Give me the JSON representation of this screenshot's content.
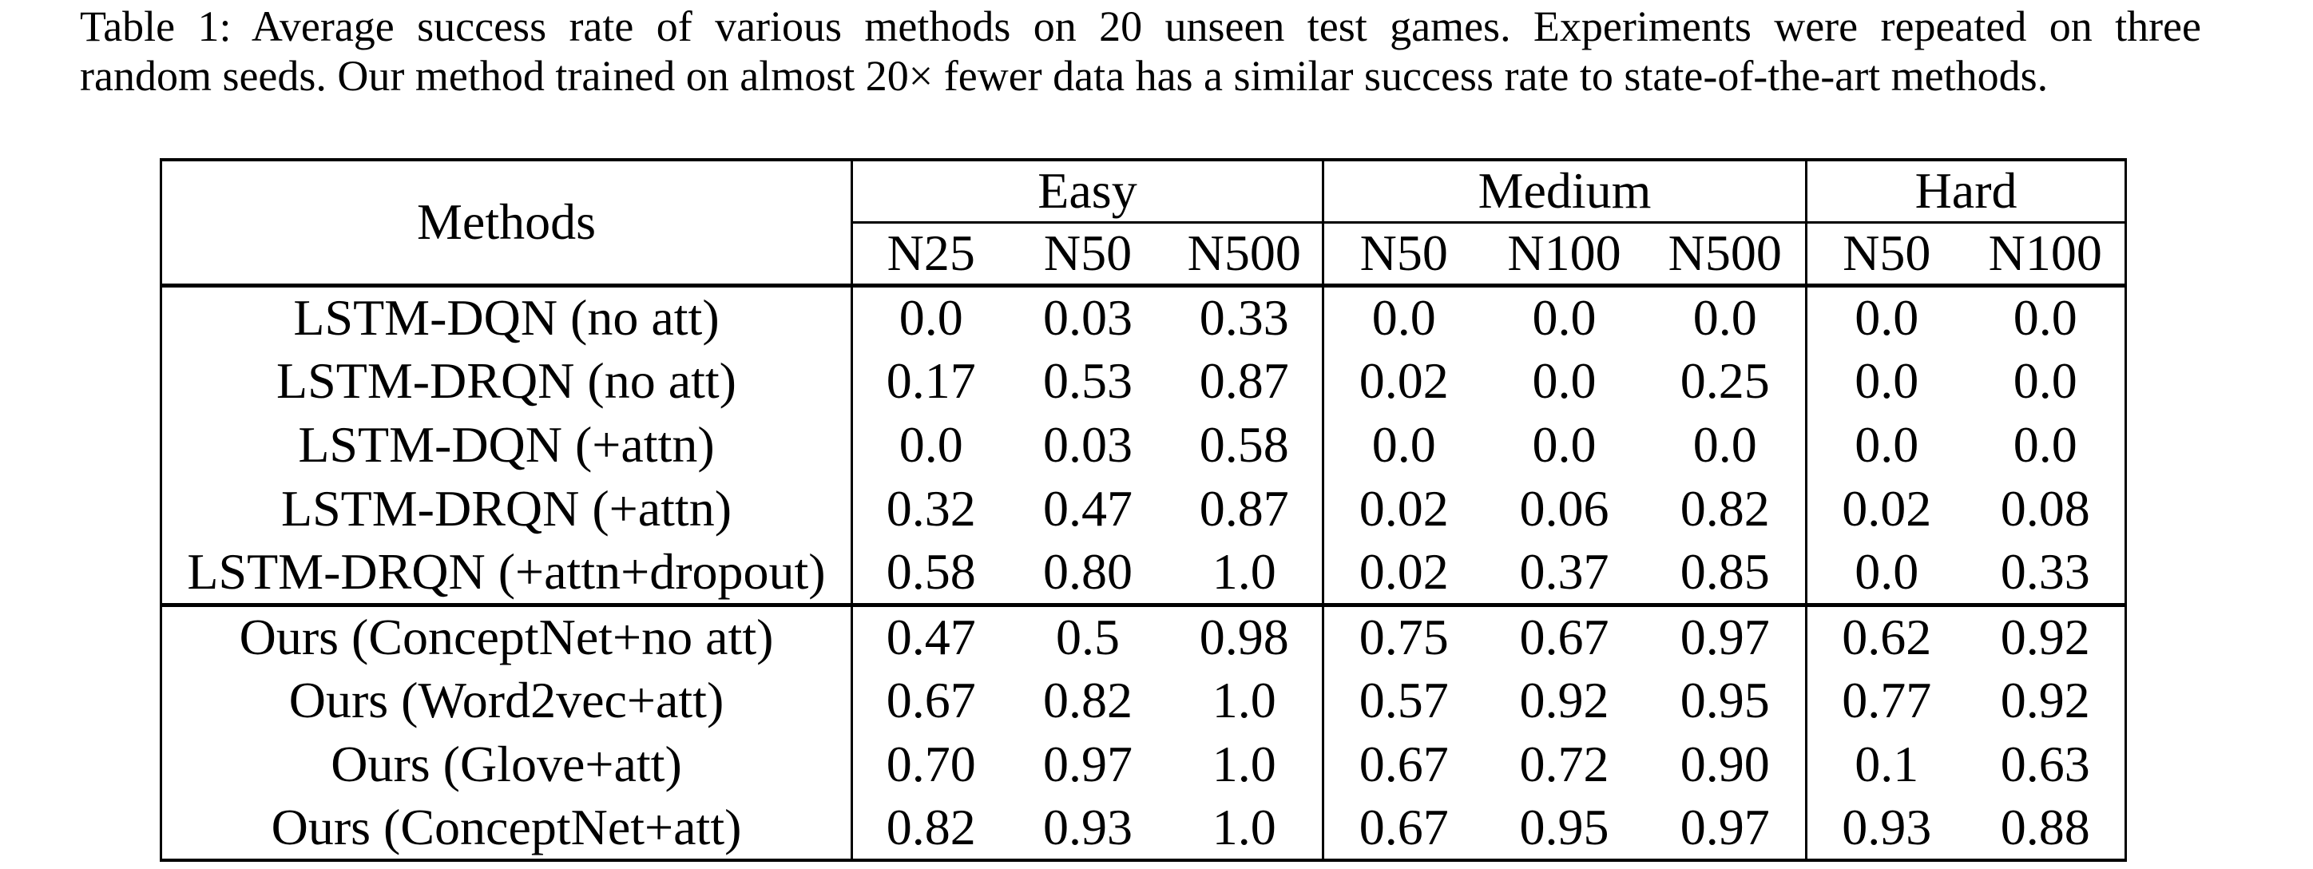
{
  "caption": {
    "line1": "Table 1: Average success rate of various methods on 20 unseen test games. Experiments were repeated on three",
    "line2": "random seeds. Our method trained on almost 20× fewer data has a similar success rate to state-of-the-art methods."
  },
  "table": {
    "methods_header": "Methods",
    "groups": [
      {
        "label": "Easy",
        "subcolumns": [
          "N25",
          "N50",
          "N500"
        ]
      },
      {
        "label": "Medium",
        "subcolumns": [
          "N50",
          "N100",
          "N500"
        ]
      },
      {
        "label": "Hard",
        "subcolumns": [
          "N50",
          "N100"
        ]
      }
    ],
    "rows": [
      {
        "method": "LSTM-DQN (no att)",
        "bold_method": false,
        "section": "baselines",
        "values": [
          {
            "text": "0.0",
            "bold": false
          },
          {
            "text": "0.03",
            "bold": false
          },
          {
            "text": "0.33",
            "bold": false
          },
          {
            "text": "0.0",
            "bold": false
          },
          {
            "text": "0.0",
            "bold": false
          },
          {
            "text": "0.0",
            "bold": false
          },
          {
            "text": "0.0",
            "bold": false
          },
          {
            "text": "0.0",
            "bold": false
          }
        ]
      },
      {
        "method": "LSTM-DRQN (no att)",
        "bold_method": false,
        "section": "baselines",
        "values": [
          {
            "text": "0.17",
            "bold": false
          },
          {
            "text": "0.53",
            "bold": false
          },
          {
            "text": "0.87",
            "bold": false
          },
          {
            "text": "0.02",
            "bold": false
          },
          {
            "text": "0.0",
            "bold": false
          },
          {
            "text": "0.25",
            "bold": false
          },
          {
            "text": "0.0",
            "bold": false
          },
          {
            "text": "0.0",
            "bold": false
          }
        ]
      },
      {
        "method": "LSTM-DQN (+attn)",
        "bold_method": false,
        "section": "baselines",
        "values": [
          {
            "text": "0.0",
            "bold": false
          },
          {
            "text": "0.03",
            "bold": false
          },
          {
            "text": "0.58",
            "bold": false
          },
          {
            "text": "0.0",
            "bold": false
          },
          {
            "text": "0.0",
            "bold": false
          },
          {
            "text": "0.0",
            "bold": false
          },
          {
            "text": "0.0",
            "bold": false
          },
          {
            "text": "0.0",
            "bold": false
          }
        ]
      },
      {
        "method": "LSTM-DRQN (+attn)",
        "bold_method": false,
        "section": "baselines",
        "values": [
          {
            "text": "0.32",
            "bold": false
          },
          {
            "text": "0.47",
            "bold": false
          },
          {
            "text": "0.87",
            "bold": false
          },
          {
            "text": "0.02",
            "bold": false
          },
          {
            "text": "0.06",
            "bold": false
          },
          {
            "text": "0.82",
            "bold": false
          },
          {
            "text": "0.02",
            "bold": false
          },
          {
            "text": "0.08",
            "bold": false
          }
        ]
      },
      {
        "method": "LSTM-DRQN (+attn+dropout)",
        "bold_method": false,
        "section": "baselines",
        "values": [
          {
            "text": "0.58",
            "bold": false
          },
          {
            "text": "0.80",
            "bold": false
          },
          {
            "text": "1.0",
            "bold": false
          },
          {
            "text": "0.02",
            "bold": false
          },
          {
            "text": "0.37",
            "bold": false
          },
          {
            "text": "0.85",
            "bold": false
          },
          {
            "text": "0.0",
            "bold": false
          },
          {
            "text": "0.33",
            "bold": false
          }
        ]
      },
      {
        "method": "Ours (ConceptNet+no att)",
        "bold_method": true,
        "section": "ours",
        "values": [
          {
            "text": "0.47",
            "bold": false
          },
          {
            "text": "0.5",
            "bold": false
          },
          {
            "text": "0.98",
            "bold": false
          },
          {
            "text": "0.75",
            "bold": true
          },
          {
            "text": "0.67",
            "bold": false
          },
          {
            "text": "0.97",
            "bold": true
          },
          {
            "text": "0.62",
            "bold": false
          },
          {
            "text": "0.92",
            "bold": true
          }
        ]
      },
      {
        "method": "Ours (Word2vec+att)",
        "bold_method": true,
        "section": "ours",
        "values": [
          {
            "text": "0.67",
            "bold": false
          },
          {
            "text": "0.82",
            "bold": false
          },
          {
            "text": "1.0",
            "bold": true
          },
          {
            "text": "0.57",
            "bold": false
          },
          {
            "text": "0.92",
            "bold": false
          },
          {
            "text": "0.95",
            "bold": false
          },
          {
            "text": "0.77",
            "bold": false
          },
          {
            "text": "0.92",
            "bold": true
          }
        ]
      },
      {
        "method": "Ours (Glove+att)",
        "bold_method": true,
        "section": "ours",
        "values": [
          {
            "text": "0.70",
            "bold": false
          },
          {
            "text": "0.97",
            "bold": true
          },
          {
            "text": "1.0",
            "bold": true
          },
          {
            "text": "0.67",
            "bold": false
          },
          {
            "text": "0.72",
            "bold": false
          },
          {
            "text": "0.90",
            "bold": false
          },
          {
            "text": "0.1",
            "bold": false
          },
          {
            "text": "0.63",
            "bold": false
          }
        ]
      },
      {
        "method": "Ours (ConceptNet+att)",
        "bold_method": true,
        "section": "ours",
        "values": [
          {
            "text": "0.82",
            "bold": true
          },
          {
            "text": "0.93",
            "bold": false
          },
          {
            "text": "1.0",
            "bold": true
          },
          {
            "text": "0.67",
            "bold": false
          },
          {
            "text": "0.95",
            "bold": true
          },
          {
            "text": "0.97",
            "bold": true
          },
          {
            "text": "0.93",
            "bold": true
          },
          {
            "text": "0.88",
            "bold": false
          }
        ]
      }
    ]
  }
}
